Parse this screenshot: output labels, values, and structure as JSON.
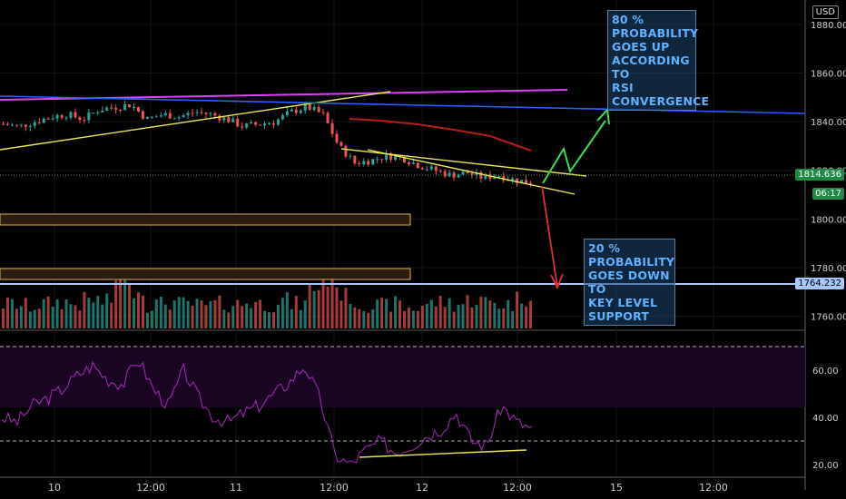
{
  "currency": "USD",
  "annotations": {
    "up_note": [
      "80 %",
      "PROBABILITY",
      "GOES UP",
      "ACCORDING TO",
      "RSI",
      "CONVERGENCE"
    ],
    "down_note": [
      "20 %",
      "PROBABILITY",
      "GOES DOWN TO",
      "KEY LEVEL",
      "SUPPORT"
    ]
  },
  "price_tags": {
    "last_price": "1814.636",
    "countdown": "06:17",
    "key_level": "1764.232"
  },
  "colors": {
    "up": "#26a69a",
    "down": "#ef5350",
    "magenta": "#e040fb",
    "yellow": "#e8e85a",
    "blue": "#2962ff",
    "ma": "#b71c1c",
    "rsi": "#9c27b0",
    "key_level": "#a9c6ff"
  },
  "chart_data": [
    {
      "type": "candlestick",
      "title": "",
      "y_axis_ticks": [
        "1880.000",
        "1860.000",
        "1840.000",
        "1820.000",
        "1800.000",
        "1780.000",
        "1760.000"
      ],
      "y_range": [
        1755,
        1890
      ],
      "x_axis_ticks": [
        "10",
        "12:00",
        "11",
        "12:00",
        "12",
        "12:00",
        "15",
        "12:00"
      ],
      "price_path": [
        1839,
        1838,
        1840,
        1842,
        1843,
        1841,
        1845,
        1846,
        1847,
        1841,
        1843,
        1842,
        1844,
        1843,
        1841,
        1838,
        1839,
        1840,
        1844,
        1846,
        1843,
        1830,
        1823,
        1824,
        1826,
        1825,
        1822,
        1820,
        1818,
        1819,
        1817,
        1818,
        1816,
        1815
      ],
      "volume_relative": [
        0.3,
        0.25,
        0.3,
        0.35,
        0.3,
        0.4,
        0.35,
        1.0,
        0.6,
        0.3,
        0.35,
        0.3,
        0.25,
        0.3,
        0.3,
        0.35,
        0.3,
        0.4,
        0.3,
        0.7,
        0.9,
        0.5,
        0.3,
        0.25,
        0.3,
        0.2,
        0.3,
        0.35,
        0.3,
        0.4,
        0.35,
        0.3,
        0.45,
        0.55
      ]
    },
    {
      "type": "line",
      "series": [
        {
          "name": "RSI",
          "values": [
            40,
            38,
            45,
            48,
            52,
            58,
            62,
            56,
            54,
            65,
            52,
            45,
            60,
            48,
            40,
            38,
            42,
            45,
            50,
            55,
            62,
            48,
            24,
            20,
            26,
            30,
            25,
            28,
            32,
            35,
            42,
            30,
            28,
            45,
            38,
            35
          ]
        }
      ],
      "y_axis_ticks": [
        "60.00",
        "40.00",
        "20.00"
      ],
      "y_range": [
        15,
        75
      ],
      "bands": [
        30,
        70
      ]
    }
  ]
}
